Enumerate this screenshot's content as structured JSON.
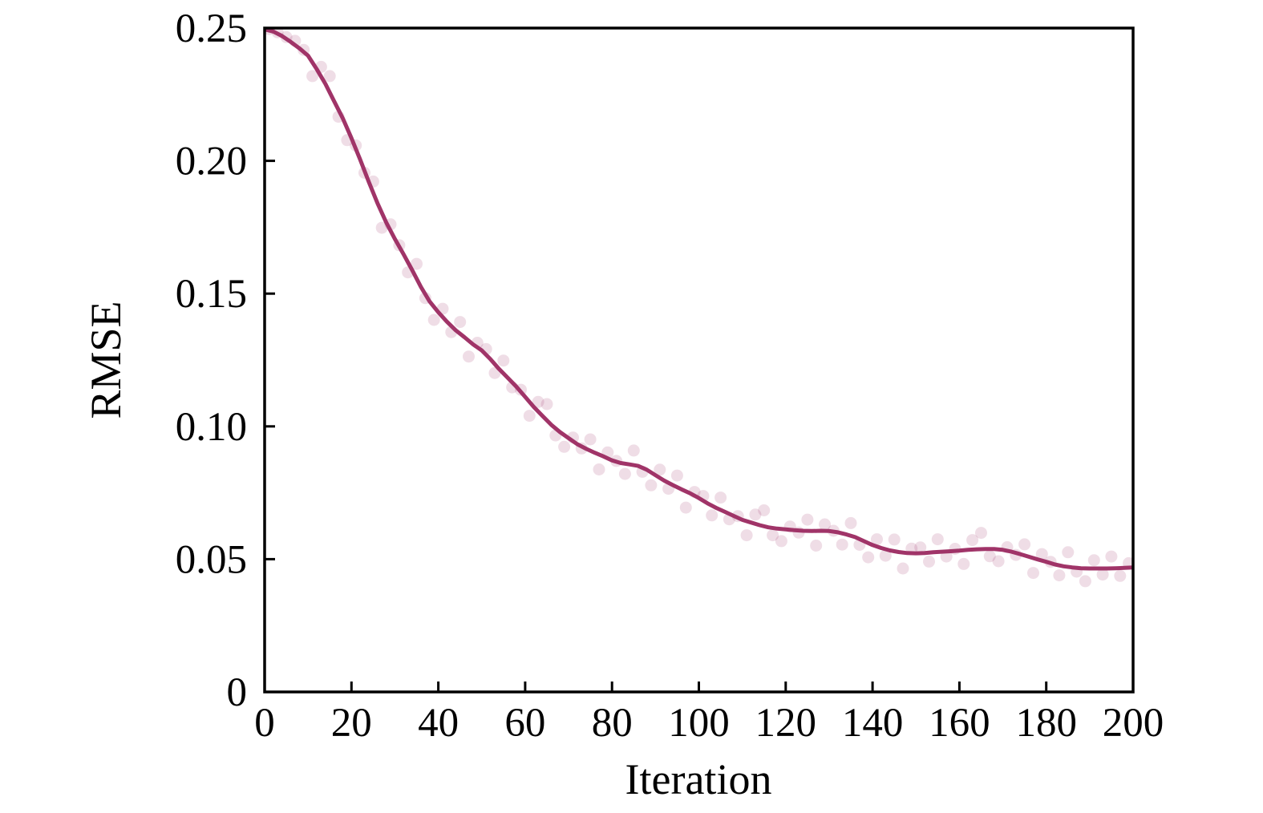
{
  "figure": {
    "background": "#ffffff",
    "frame_color": "#000000"
  },
  "chart_data": {
    "type": "line",
    "title": "",
    "xlabel": "Iteration",
    "ylabel": "RMSE",
    "xlim": [
      0,
      200
    ],
    "ylim": [
      0,
      0.25
    ],
    "grid": false,
    "legend_position": "none",
    "xticks": {
      "values": [
        0,
        20,
        40,
        60,
        80,
        100,
        120,
        140,
        160,
        180,
        200
      ],
      "labels": [
        "0",
        "20",
        "40",
        "60",
        "80",
        "100",
        "120",
        "140",
        "160",
        "180",
        "200"
      ]
    },
    "yticks": {
      "values": [
        0,
        0.05,
        0.1,
        0.15,
        0.2,
        0.25
      ],
      "labels": [
        "0",
        "0.05",
        "0.10",
        "0.15",
        "0.20",
        "0.25"
      ]
    },
    "series": [
      {
        "name": "rmse-raw-scatter",
        "type": "scatter",
        "color": "#a03468",
        "opacity": 0.17,
        "radius": 7.5,
        "x": [
          1,
          3,
          5,
          7,
          9,
          11,
          13,
          15,
          17,
          19,
          21,
          23,
          25,
          27,
          29,
          31,
          33,
          35,
          37,
          39,
          41,
          43,
          45,
          47,
          49,
          51,
          53,
          55,
          57,
          59,
          61,
          63,
          65,
          67,
          69,
          71,
          73,
          75,
          77,
          79,
          81,
          83,
          85,
          87,
          89,
          91,
          93,
          95,
          97,
          99,
          101,
          103,
          105,
          107,
          109,
          111,
          113,
          115,
          117,
          119,
          121,
          123,
          125,
          127,
          129,
          131,
          133,
          135,
          137,
          139,
          141,
          143,
          145,
          147,
          149,
          151,
          153,
          155,
          157,
          159,
          161,
          163,
          165,
          167,
          169,
          171,
          173,
          175,
          177,
          179,
          181,
          183,
          185,
          187,
          189,
          191,
          193,
          195,
          197,
          199
        ],
        "y": [
          0.2496,
          0.2484,
          0.2466,
          0.2452,
          0.2418,
          0.2319,
          0.2354,
          0.2319,
          0.2166,
          0.2078,
          0.2058,
          0.1955,
          0.1922,
          0.1748,
          0.1761,
          0.1682,
          0.158,
          0.1612,
          0.1483,
          0.1401,
          0.1443,
          0.1355,
          0.1393,
          0.1263,
          0.1315,
          0.1291,
          0.1201,
          0.1248,
          0.1147,
          0.1138,
          0.104,
          0.1092,
          0.1084,
          0.0966,
          0.0923,
          0.0958,
          0.0917,
          0.0951,
          0.0838,
          0.0902,
          0.087,
          0.0821,
          0.0909,
          0.0829,
          0.0778,
          0.0837,
          0.0765,
          0.0815,
          0.0694,
          0.0753,
          0.0738,
          0.0665,
          0.0732,
          0.065,
          0.0662,
          0.059,
          0.0668,
          0.0684,
          0.059,
          0.0568,
          0.0623,
          0.06,
          0.0649,
          0.0551,
          0.0631,
          0.0607,
          0.0555,
          0.0636,
          0.0554,
          0.0507,
          0.0575,
          0.0513,
          0.0574,
          0.0465,
          0.054,
          0.0544,
          0.0491,
          0.0575,
          0.051,
          0.0539,
          0.0482,
          0.0572,
          0.0599,
          0.0511,
          0.0492,
          0.0545,
          0.0516,
          0.0556,
          0.0448,
          0.0519,
          0.049,
          0.0439,
          0.0526,
          0.0453,
          0.0417,
          0.0496,
          0.0442,
          0.051,
          0.0437,
          0.0485
        ]
      },
      {
        "name": "rmse-smoothed-line",
        "type": "line",
        "color": "#a03468",
        "width": 5,
        "x": [
          0,
          2,
          4,
          6,
          8,
          10,
          12,
          14,
          16,
          18,
          20,
          22,
          24,
          26,
          28,
          30,
          32,
          34,
          36,
          38,
          40,
          42,
          44,
          46,
          48,
          50,
          52,
          54,
          56,
          58,
          60,
          62,
          64,
          66,
          68,
          70,
          72,
          74,
          76,
          78,
          80,
          82,
          84,
          86,
          88,
          90,
          92,
          94,
          96,
          98,
          100,
          102,
          104,
          106,
          108,
          110,
          112,
          114,
          116,
          118,
          120,
          122,
          124,
          126,
          128,
          130,
          132,
          134,
          136,
          138,
          140,
          142,
          144,
          146,
          148,
          150,
          152,
          154,
          156,
          158,
          160,
          162,
          164,
          166,
          168,
          170,
          172,
          174,
          176,
          178,
          180,
          182,
          184,
          186,
          188,
          190,
          192,
          194,
          196,
          198,
          200
        ],
        "y": [
          0.2495,
          0.2487,
          0.247,
          0.2448,
          0.2424,
          0.2396,
          0.2345,
          0.229,
          0.2225,
          0.216,
          0.2085,
          0.2005,
          0.192,
          0.184,
          0.1768,
          0.1706,
          0.1648,
          0.1588,
          0.1525,
          0.147,
          0.143,
          0.1394,
          0.1362,
          0.1336,
          0.1309,
          0.1286,
          0.1253,
          0.1216,
          0.1183,
          0.1149,
          0.1111,
          0.1073,
          0.1039,
          0.1006,
          0.0979,
          0.0956,
          0.0933,
          0.0916,
          0.0901,
          0.0887,
          0.0872,
          0.0862,
          0.0857,
          0.0851,
          0.0837,
          0.0816,
          0.0796,
          0.0779,
          0.0763,
          0.0748,
          0.073,
          0.071,
          0.0693,
          0.0678,
          0.0663,
          0.0648,
          0.0638,
          0.0628,
          0.062,
          0.0615,
          0.0612,
          0.0609,
          0.0607,
          0.0606,
          0.0607,
          0.0606,
          0.0601,
          0.0593,
          0.0583,
          0.0568,
          0.0553,
          0.0542,
          0.0533,
          0.0527,
          0.0523,
          0.0522,
          0.0523,
          0.0526,
          0.0528,
          0.053,
          0.0532,
          0.0535,
          0.0537,
          0.0538,
          0.0538,
          0.0535,
          0.0528,
          0.0519,
          0.0509,
          0.0499,
          0.049,
          0.048,
          0.0473,
          0.0469,
          0.0466,
          0.0465,
          0.0465,
          0.0465,
          0.0466,
          0.0467,
          0.0469
        ]
      }
    ]
  }
}
